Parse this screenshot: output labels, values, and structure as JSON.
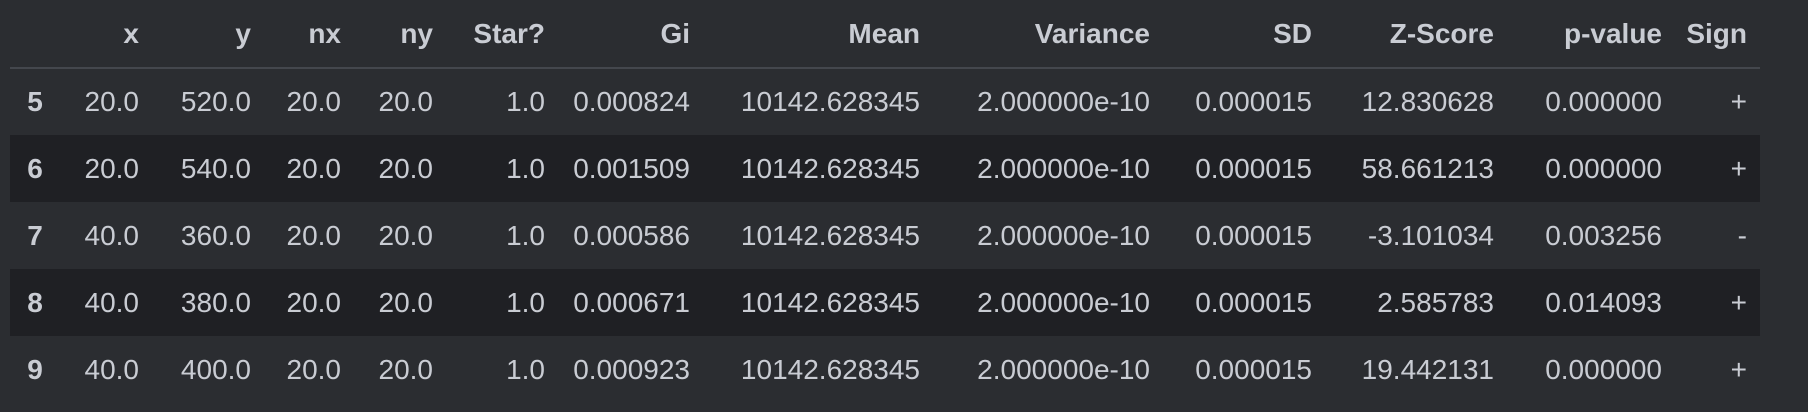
{
  "table": {
    "headers": [
      "",
      "x",
      "y",
      "nx",
      "ny",
      "Star?",
      "Gi",
      "Mean",
      "Variance",
      "SD",
      "Z-Score",
      "p-value",
      "Sign"
    ],
    "rows": [
      {
        "index": "5",
        "cells": [
          "20.0",
          "520.0",
          "20.0",
          "20.0",
          "1.0",
          "0.000824",
          "10142.628345",
          "2.000000e-10",
          "0.000015",
          "12.830628",
          "0.000000",
          "+"
        ]
      },
      {
        "index": "6",
        "cells": [
          "20.0",
          "540.0",
          "20.0",
          "20.0",
          "1.0",
          "0.001509",
          "10142.628345",
          "2.000000e-10",
          "0.000015",
          "58.661213",
          "0.000000",
          "+"
        ]
      },
      {
        "index": "7",
        "cells": [
          "40.0",
          "360.0",
          "20.0",
          "20.0",
          "1.0",
          "0.000586",
          "10142.628345",
          "2.000000e-10",
          "0.000015",
          "-3.101034",
          "0.003256",
          "-"
        ]
      },
      {
        "index": "8",
        "cells": [
          "40.0",
          "380.0",
          "20.0",
          "20.0",
          "1.0",
          "0.000671",
          "10142.628345",
          "2.000000e-10",
          "0.000015",
          "2.585783",
          "0.014093",
          "+"
        ]
      },
      {
        "index": "9",
        "cells": [
          "40.0",
          "400.0",
          "20.0",
          "20.0",
          "1.0",
          "0.000923",
          "10142.628345",
          "2.000000e-10",
          "0.000015",
          "19.442131",
          "0.000000",
          "+"
        ]
      }
    ]
  },
  "colors": {
    "background": "#2b2d31",
    "row_alt": "#1f2024",
    "text": "#c9ccd3"
  }
}
